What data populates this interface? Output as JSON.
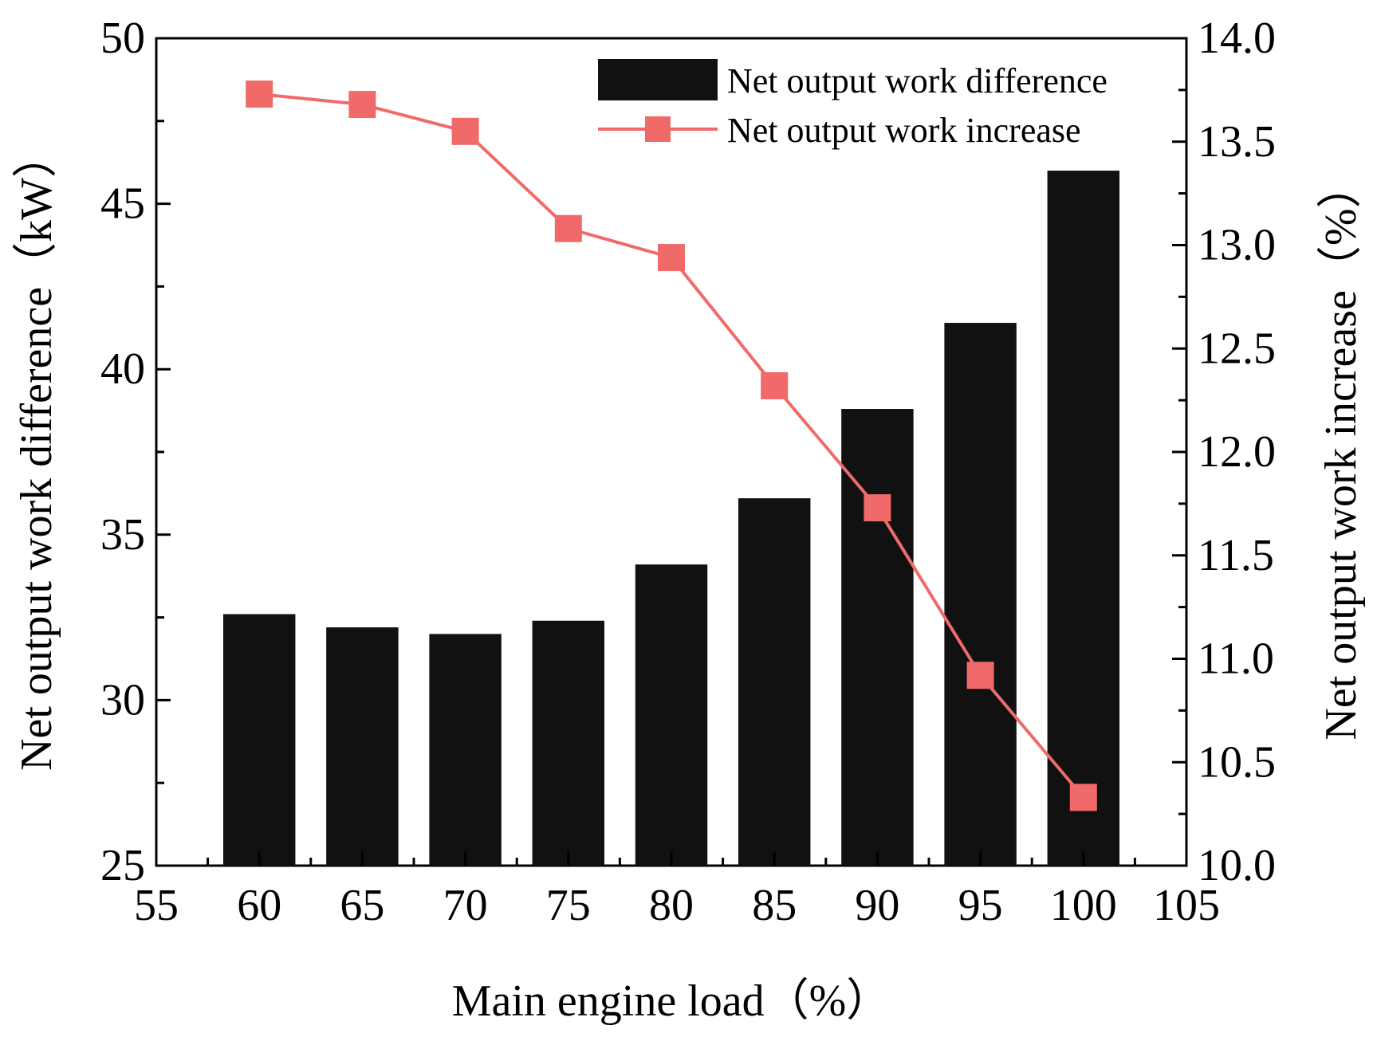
{
  "chart_data": {
    "type": "bar+line",
    "x": [
      60,
      65,
      70,
      75,
      80,
      85,
      90,
      95,
      100
    ],
    "series": [
      {
        "name": "Net output work difference",
        "type": "bar",
        "axis": "left",
        "color": "#111111",
        "values": [
          32.6,
          32.2,
          32.0,
          32.4,
          34.1,
          36.1,
          38.8,
          41.4,
          46.0
        ]
      },
      {
        "name": "Net output work increase",
        "type": "line",
        "axis": "right",
        "color": "#f06a6a",
        "marker": "square",
        "values": [
          13.73,
          13.68,
          13.55,
          13.08,
          12.94,
          12.32,
          11.73,
          10.92,
          10.33
        ]
      }
    ],
    "xlabel": "Main engine load（%）",
    "ylabel_left": "Net output work difference（kW）",
    "ylabel_right": "Net output work increase（%）",
    "xlim": [
      55,
      105
    ],
    "ylim_left": [
      25,
      50
    ],
    "ylim_right": [
      10.0,
      14.0
    ],
    "x_ticks": [
      "55",
      "60",
      "65",
      "70",
      "75",
      "80",
      "85",
      "90",
      "95",
      "100",
      "105"
    ],
    "y_left_ticks": [
      "25",
      "30",
      "35",
      "40",
      "45",
      "50"
    ],
    "y_right_ticks": [
      "10.0",
      "10.5",
      "11.0",
      "11.5",
      "12.0",
      "12.5",
      "13.0",
      "13.5",
      "14.0"
    ],
    "legend_position": "top-right",
    "grid": false
  }
}
